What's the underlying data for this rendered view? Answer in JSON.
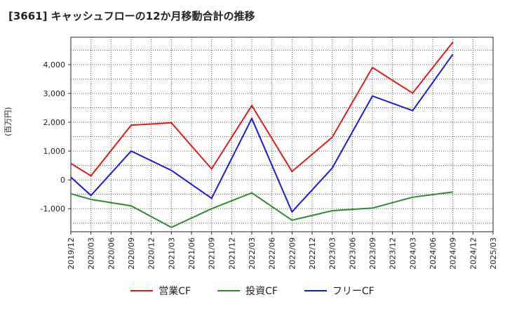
{
  "title": "[3661]  キャッシュフローの12か月移動合計の推移",
  "ylabel": "(百万円)",
  "chart_data": {
    "type": "line",
    "title": "[3661]  キャッシュフローの12か月移動合計の推移",
    "ylabel": "(百万円)",
    "xlabel": "",
    "categories": [
      "2019/12",
      "2020/03",
      "2020/06",
      "2020/09",
      "2020/12",
      "2021/03",
      "2021/06",
      "2021/09",
      "2021/12",
      "2022/03",
      "2022/06",
      "2022/09",
      "2022/12",
      "2023/03",
      "2023/06",
      "2023/09",
      "2023/12",
      "2024/03",
      "2024/06",
      "2024/09",
      "2024/12",
      "2025/03"
    ],
    "ylim": [
      -1800,
      4950
    ],
    "yticks": [
      -1000,
      0,
      1000,
      2000,
      3000,
      4000
    ],
    "ytick_labels": [
      "-1,000",
      "0",
      "1,000",
      "2,000",
      "3,000",
      "4,000"
    ],
    "grid": true,
    "legend_position": "bottom",
    "series": [
      {
        "name": "営業CF",
        "color": "#dd1c1c",
        "values": [
          570,
          140,
          null,
          1900,
          null,
          1980,
          null,
          380,
          null,
          2580,
          null,
          290,
          null,
          1480,
          null,
          3900,
          null,
          3010,
          null,
          4780,
          null,
          null
        ]
      },
      {
        "name": "投資CF",
        "color": "#2e8b2e",
        "values": [
          -480,
          -680,
          null,
          -900,
          null,
          -1650,
          null,
          -1000,
          null,
          -450,
          null,
          -1400,
          null,
          -1070,
          null,
          -980,
          null,
          -600,
          null,
          -420,
          null,
          null
        ]
      },
      {
        "name": "フリーCF",
        "color": "#1a1adc",
        "values": [
          90,
          -540,
          null,
          1000,
          null,
          330,
          null,
          -640,
          null,
          2130,
          null,
          -1110,
          null,
          410,
          null,
          2910,
          null,
          2400,
          null,
          4360,
          null,
          null
        ]
      }
    ]
  }
}
